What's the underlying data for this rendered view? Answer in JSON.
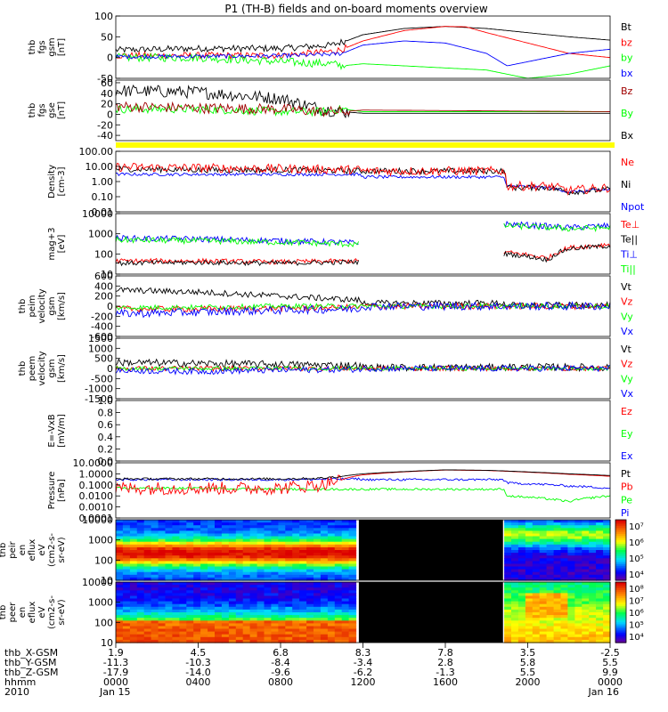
{
  "title": "P1 (TH-B) fields and on-board moments overview",
  "colors": {
    "black": "#000000",
    "red": "#ff0000",
    "green": "#00ff00",
    "blue": "#0000ff",
    "darkred": "#a00000",
    "yellow": "#ffff00"
  },
  "x_axis": {
    "rows": [
      {
        "label": "thb_X-GSM",
        "values": [
          "1.9",
          "4.5",
          "6.8",
          "8.3",
          "7.8",
          "3.5",
          "-2.5"
        ]
      },
      {
        "label": "thb_Y-GSM",
        "values": [
          "-11.3",
          "-10.3",
          "-8.4",
          "-3.4",
          "2.8",
          "5.8",
          "5.5"
        ]
      },
      {
        "label": "thb_Z-GSM",
        "values": [
          "-17.9",
          "-14.0",
          "-9.6",
          "-6.2",
          "-1.3",
          "5.5",
          "9.9"
        ]
      },
      {
        "label": "hhmm",
        "values": [
          "0000",
          "0400",
          "0800",
          "1200",
          "1600",
          "2000",
          "0000"
        ]
      },
      {
        "label": "2010",
        "values": [
          "Jan 15",
          "",
          "",
          "",
          "",
          "",
          "Jan 16"
        ]
      }
    ]
  },
  "chart_data": [
    {
      "type": "line",
      "id": "fgs_gsm",
      "ylabel": [
        "thb",
        "fgs",
        "gsm",
        "[nT]"
      ],
      "yticks": [
        "100",
        "50",
        "0",
        "-50"
      ],
      "ylim": [
        -50,
        100
      ],
      "legend": [
        {
          "name": "Bt",
          "color": "#000000"
        },
        {
          "name": "bz",
          "color": "#ff0000"
        },
        {
          "name": "by",
          "color": "#00ff00"
        },
        {
          "name": "bx",
          "color": "#0000ff"
        }
      ],
      "series": [
        {
          "name": "Bt",
          "color": "#000000",
          "x": [
            0,
            4,
            8,
            10.5,
            11,
            11.2,
            12,
            14,
            16,
            18,
            20,
            22,
            24
          ],
          "y": [
            18,
            22,
            22,
            30,
            38,
            40,
            55,
            70,
            75,
            70,
            60,
            50,
            42
          ],
          "noise": 8,
          "noise_until": 11.2
        },
        {
          "name": "bz",
          "color": "#ff0000",
          "x": [
            0,
            4,
            8,
            10.5,
            11,
            12,
            14,
            16,
            17,
            18,
            20,
            22,
            24
          ],
          "y": [
            5,
            5,
            5,
            15,
            20,
            40,
            65,
            75,
            74,
            60,
            35,
            10,
            0
          ],
          "noise": 8,
          "noise_until": 11.2
        },
        {
          "name": "by",
          "color": "#00ff00",
          "x": [
            0,
            4,
            8,
            10.5,
            11,
            12,
            14,
            16,
            18,
            20,
            22,
            24
          ],
          "y": [
            0,
            0,
            -10,
            -15,
            -20,
            -15,
            -20,
            -25,
            -30,
            -50,
            -40,
            -20
          ],
          "noise": 10,
          "noise_until": 11.2
        },
        {
          "name": "bx",
          "color": "#0000ff",
          "x": [
            0,
            4,
            8,
            10.5,
            11,
            12,
            14,
            16,
            18,
            19,
            20,
            22,
            24
          ],
          "y": [
            2,
            3,
            4,
            8,
            10,
            30,
            40,
            35,
            10,
            -20,
            -10,
            10,
            20
          ],
          "noise": 5,
          "noise_until": 11.2
        }
      ]
    },
    {
      "type": "line",
      "id": "fgs_gse",
      "ylabel": [
        "thb",
        "fgs",
        "gse",
        "[nT]"
      ],
      "yticks": [
        "60",
        "40",
        "20",
        "0",
        "-20",
        "-40"
      ],
      "ylim": [
        -50,
        65
      ],
      "legend": [
        {
          "name": "Bz",
          "color": "#a00000"
        },
        {
          "name": "By",
          "color": "#00ff00"
        },
        {
          "name": "Bx",
          "color": "#000000"
        }
      ],
      "series": [
        {
          "name": "Bx",
          "color": "#000000",
          "x": [
            0,
            4,
            8,
            10,
            11,
            12,
            24
          ],
          "y": [
            45,
            42,
            30,
            10,
            5,
            2,
            2
          ],
          "noise": 12,
          "noise_until": 11.3
        },
        {
          "name": "By",
          "color": "#00ff00",
          "x": [
            0,
            4,
            8,
            10,
            11,
            12,
            24
          ],
          "y": [
            10,
            10,
            5,
            5,
            10,
            5,
            5
          ],
          "noise": 8,
          "noise_until": 11.3
        },
        {
          "name": "Bz",
          "color": "#a00000",
          "x": [
            0,
            4,
            8,
            10,
            11,
            12,
            24
          ],
          "y": [
            15,
            12,
            10,
            5,
            5,
            8,
            5
          ],
          "noise": 10,
          "noise_until": 11.3
        }
      ]
    },
    {
      "type": "band",
      "id": "status_bar",
      "color": "#ffff00"
    },
    {
      "type": "line",
      "id": "density",
      "yscale": "log",
      "ylabel": [
        "Density",
        "[cm-3]"
      ],
      "yticks": [
        "100.00",
        "10.00",
        "1.00",
        "0.10",
        "0.01"
      ],
      "ylim": [
        0.01,
        100
      ],
      "legend": [
        {
          "name": "Ne",
          "color": "#ff0000"
        },
        {
          "name": "Ni",
          "color": "#000000"
        },
        {
          "name": "Npot",
          "color": "#0000ff"
        }
      ],
      "series": [
        {
          "name": "Npot",
          "color": "#0000ff",
          "x": [
            0,
            4,
            8,
            11.8,
            12,
            18.8,
            19,
            21,
            22,
            24
          ],
          "y": [
            3,
            3,
            3,
            3,
            2,
            2,
            0.5,
            0.4,
            0.2,
            0.3
          ],
          "noise": 0.1
        },
        {
          "name": "Ni",
          "color": "#000000",
          "x": [
            0,
            4,
            8,
            11.8,
            12,
            18.8,
            19,
            21,
            22,
            24
          ],
          "y": [
            7,
            6,
            6,
            5,
            5,
            5,
            0.4,
            0.4,
            0.2,
            0.3
          ],
          "noise": 0.2
        },
        {
          "name": "Ne",
          "color": "#ff0000",
          "x": [
            0,
            4,
            8,
            11.8,
            12,
            18.8,
            19,
            21,
            22,
            24
          ],
          "y": [
            9,
            8,
            7,
            6,
            5,
            5,
            0.5,
            0.5,
            0.25,
            0.4
          ],
          "noise": 0.3
        }
      ]
    },
    {
      "type": "line",
      "id": "temperature",
      "yscale": "log",
      "ylabel": [
        "mag+3",
        "[eV]"
      ],
      "yticks": [
        "10000",
        "1000",
        "100",
        "10"
      ],
      "ylim": [
        10,
        10000
      ],
      "legend": [
        {
          "name": "Te⊥",
          "color": "#ff0000"
        },
        {
          "name": "Te||",
          "color": "#000000"
        },
        {
          "name": "Ti⊥",
          "color": "#0000ff"
        },
        {
          "name": "Ti||",
          "color": "#00ff00"
        }
      ],
      "series": [
        {
          "name": "Ti⊥",
          "color": "#0000ff",
          "x": [
            0,
            4,
            8,
            11.8,
            18.8,
            19,
            22,
            24
          ],
          "y": [
            600,
            550,
            450,
            350,
            3000,
            3000,
            2000,
            2500
          ],
          "noise": 0.15
        },
        {
          "name": "Ti||",
          "color": "#00ff00",
          "x": [
            0,
            4,
            8,
            11.8,
            18.8,
            19,
            22,
            24
          ],
          "y": [
            500,
            450,
            380,
            300,
            2500,
            2500,
            1800,
            2000
          ],
          "noise": 0.15
        },
        {
          "name": "Te⊥",
          "color": "#ff0000",
          "x": [
            0,
            4,
            8,
            11.8,
            18.8,
            19,
            21,
            22,
            24
          ],
          "y": [
            45,
            45,
            40,
            45,
            120,
            120,
            60,
            200,
            300
          ],
          "noise": 0.12
        },
        {
          "name": "Te||",
          "color": "#000000",
          "x": [
            0,
            4,
            8,
            11.8,
            18.8,
            19,
            21,
            22,
            24
          ],
          "y": [
            35,
            38,
            35,
            40,
            100,
            100,
            50,
            180,
            250
          ],
          "noise": 0.12
        }
      ],
      "gap": [
        11.8,
        18.8
      ]
    },
    {
      "type": "line",
      "id": "peim_velocity",
      "ylabel": [
        "thb",
        "peim",
        "velocity",
        "gsm",
        "[km/s]"
      ],
      "yticks": [
        "600",
        "400",
        "200",
        "0",
        "-200",
        "-400",
        "-600"
      ],
      "ylim": [
        -600,
        600
      ],
      "legend": [
        {
          "name": "Vt",
          "color": "#000000"
        },
        {
          "name": "Vz",
          "color": "#ff0000"
        },
        {
          "name": "Vy",
          "color": "#00ff00"
        },
        {
          "name": "Vx",
          "color": "#0000ff"
        }
      ],
      "series": [
        {
          "name": "Vt",
          "color": "#000000",
          "x": [
            0,
            4,
            8,
            11.8,
            12,
            18.8,
            19,
            24
          ],
          "y": [
            320,
            280,
            200,
            120,
            60,
            60,
            20,
            20
          ],
          "noise": 60
        },
        {
          "name": "Vz",
          "color": "#ff0000",
          "x": [
            0,
            4,
            8,
            11.8,
            12,
            24
          ],
          "y": [
            -50,
            -60,
            -40,
            -20,
            0,
            0
          ],
          "noise": 60
        },
        {
          "name": "Vy",
          "color": "#00ff00",
          "x": [
            0,
            4,
            8,
            11.8,
            12,
            24
          ],
          "y": [
            -30,
            -20,
            0,
            0,
            0,
            0
          ],
          "noise": 50
        },
        {
          "name": "Vx",
          "color": "#0000ff",
          "x": [
            0,
            4,
            8,
            11.8,
            12,
            24
          ],
          "y": [
            -150,
            -120,
            -80,
            -50,
            0,
            0
          ],
          "noise": 80
        }
      ]
    },
    {
      "type": "line",
      "id": "peem_velocity",
      "ylabel": [
        "thb",
        "peem",
        "velocity",
        "gsm",
        "[km/s]"
      ],
      "yticks": [
        "1500",
        "1000",
        "500",
        "0",
        "-500",
        "-1000",
        "-1500"
      ],
      "ylim": [
        -1500,
        1500
      ],
      "legend": [
        {
          "name": "Vt",
          "color": "#000000"
        },
        {
          "name": "Vz",
          "color": "#ff0000"
        },
        {
          "name": "Vy",
          "color": "#00ff00"
        },
        {
          "name": "Vx",
          "color": "#0000ff"
        }
      ],
      "series": [
        {
          "name": "Vt",
          "color": "#000000",
          "x": [
            0,
            4,
            8,
            11.8,
            12,
            18.8,
            19,
            24
          ],
          "y": [
            300,
            250,
            200,
            150,
            50,
            50,
            80,
            50
          ],
          "noise": 180
        },
        {
          "name": "Vz",
          "color": "#ff0000",
          "x": [
            0,
            4,
            8,
            11.8,
            12,
            24
          ],
          "y": [
            0,
            0,
            0,
            0,
            0,
            0
          ],
          "noise": 120
        },
        {
          "name": "Vy",
          "color": "#00ff00",
          "x": [
            0,
            4,
            8,
            11.8,
            12,
            24
          ],
          "y": [
            0,
            0,
            0,
            0,
            0,
            0
          ],
          "noise": 100
        },
        {
          "name": "Vx",
          "color": "#0000ff",
          "x": [
            0,
            4,
            8,
            11.8,
            12,
            24
          ],
          "y": [
            -100,
            -150,
            -80,
            -50,
            0,
            0
          ],
          "noise": 150
        }
      ]
    },
    {
      "type": "line",
      "id": "efield",
      "ylabel": [
        "E=-VxB",
        "[mV/m]"
      ],
      "yticks": [
        "1.0",
        "0.8",
        "0.6",
        "0.4",
        "0.2",
        "0.0"
      ],
      "ylim": [
        0,
        1
      ],
      "legend": [
        {
          "name": "Ez",
          "color": "#ff0000"
        },
        {
          "name": "Ey",
          "color": "#00ff00"
        },
        {
          "name": "Ex",
          "color": "#0000ff"
        }
      ],
      "series": []
    },
    {
      "type": "line",
      "id": "pressure",
      "yscale": "log",
      "ylabel": [
        "Pressure",
        "[nPa]"
      ],
      "yticks": [
        "10.0000",
        "1.0000",
        "0.1000",
        "0.0100",
        "0.0010",
        "0.0001"
      ],
      "ylim": [
        0.0001,
        10
      ],
      "legend": [
        {
          "name": "Pt",
          "color": "#000000"
        },
        {
          "name": "Pb",
          "color": "#ff0000"
        },
        {
          "name": "Pe",
          "color": "#00ff00"
        },
        {
          "name": "Pi",
          "color": "#0000ff"
        }
      ],
      "series": [
        {
          "name": "Pe",
          "color": "#00ff00",
          "x": [
            0,
            4,
            8,
            11.8,
            12,
            18.8,
            19,
            22,
            24
          ],
          "y": [
            0.05,
            0.05,
            0.04,
            0.04,
            0.04,
            0.04,
            0.01,
            0.003,
            0.01
          ],
          "noise": 0.1
        },
        {
          "name": "Pi",
          "color": "#0000ff",
          "x": [
            0,
            4,
            8,
            11.8,
            12,
            18.8,
            19,
            22,
            24
          ],
          "y": [
            0.3,
            0.3,
            0.3,
            0.35,
            0.3,
            0.3,
            0.15,
            0.08,
            0.05
          ],
          "noise": 0.1
        },
        {
          "name": "Pb",
          "color": "#ff0000",
          "x": [
            0,
            4,
            8,
            10,
            11,
            12,
            14,
            16,
            18,
            20,
            22,
            24
          ],
          "y": [
            0.05,
            0.05,
            0.05,
            0.1,
            0.3,
            0.8,
            1.5,
            2.2,
            2.0,
            1.4,
            0.9,
            0.6
          ],
          "noise": 0.6,
          "noise_until": 11
        },
        {
          "name": "Pt",
          "color": "#000000",
          "x": [
            0,
            4,
            8,
            10,
            11,
            12,
            14,
            16,
            18,
            20,
            22,
            24
          ],
          "y": [
            0.35,
            0.35,
            0.35,
            0.4,
            0.6,
            1.0,
            1.6,
            2.3,
            2.1,
            1.5,
            1.0,
            0.7
          ],
          "noise": 0.1,
          "noise_until": 11
        }
      ]
    },
    {
      "type": "heatmap",
      "id": "peir_spectrogram",
      "ylabel": [
        "thb",
        "peir",
        "en",
        "eflux",
        "eV",
        "(cm2-s-",
        "sr-eV)"
      ],
      "yticks": [
        "10000",
        "1000",
        "100",
        "10"
      ],
      "ylim": [
        10,
        10000
      ],
      "colorbar_ticks": [
        "10⁷",
        "10⁶",
        "10⁵",
        "10⁴"
      ],
      "gap": [
        11.8,
        18.8
      ],
      "mode": "ion"
    },
    {
      "type": "heatmap",
      "id": "peer_spectrogram",
      "ylabel": [
        "thb",
        "peer",
        "en",
        "eflux",
        "eV",
        "(cm2-s-",
        "sr-eV)"
      ],
      "yticks": [
        "10000",
        "1000",
        "100",
        "10"
      ],
      "ylim": [
        10,
        10000
      ],
      "colorbar_ticks": [
        "10⁸",
        "10⁷",
        "10⁶",
        "10⁵",
        "10⁴"
      ],
      "gap": [
        11.8,
        18.8
      ],
      "mode": "electron"
    }
  ]
}
